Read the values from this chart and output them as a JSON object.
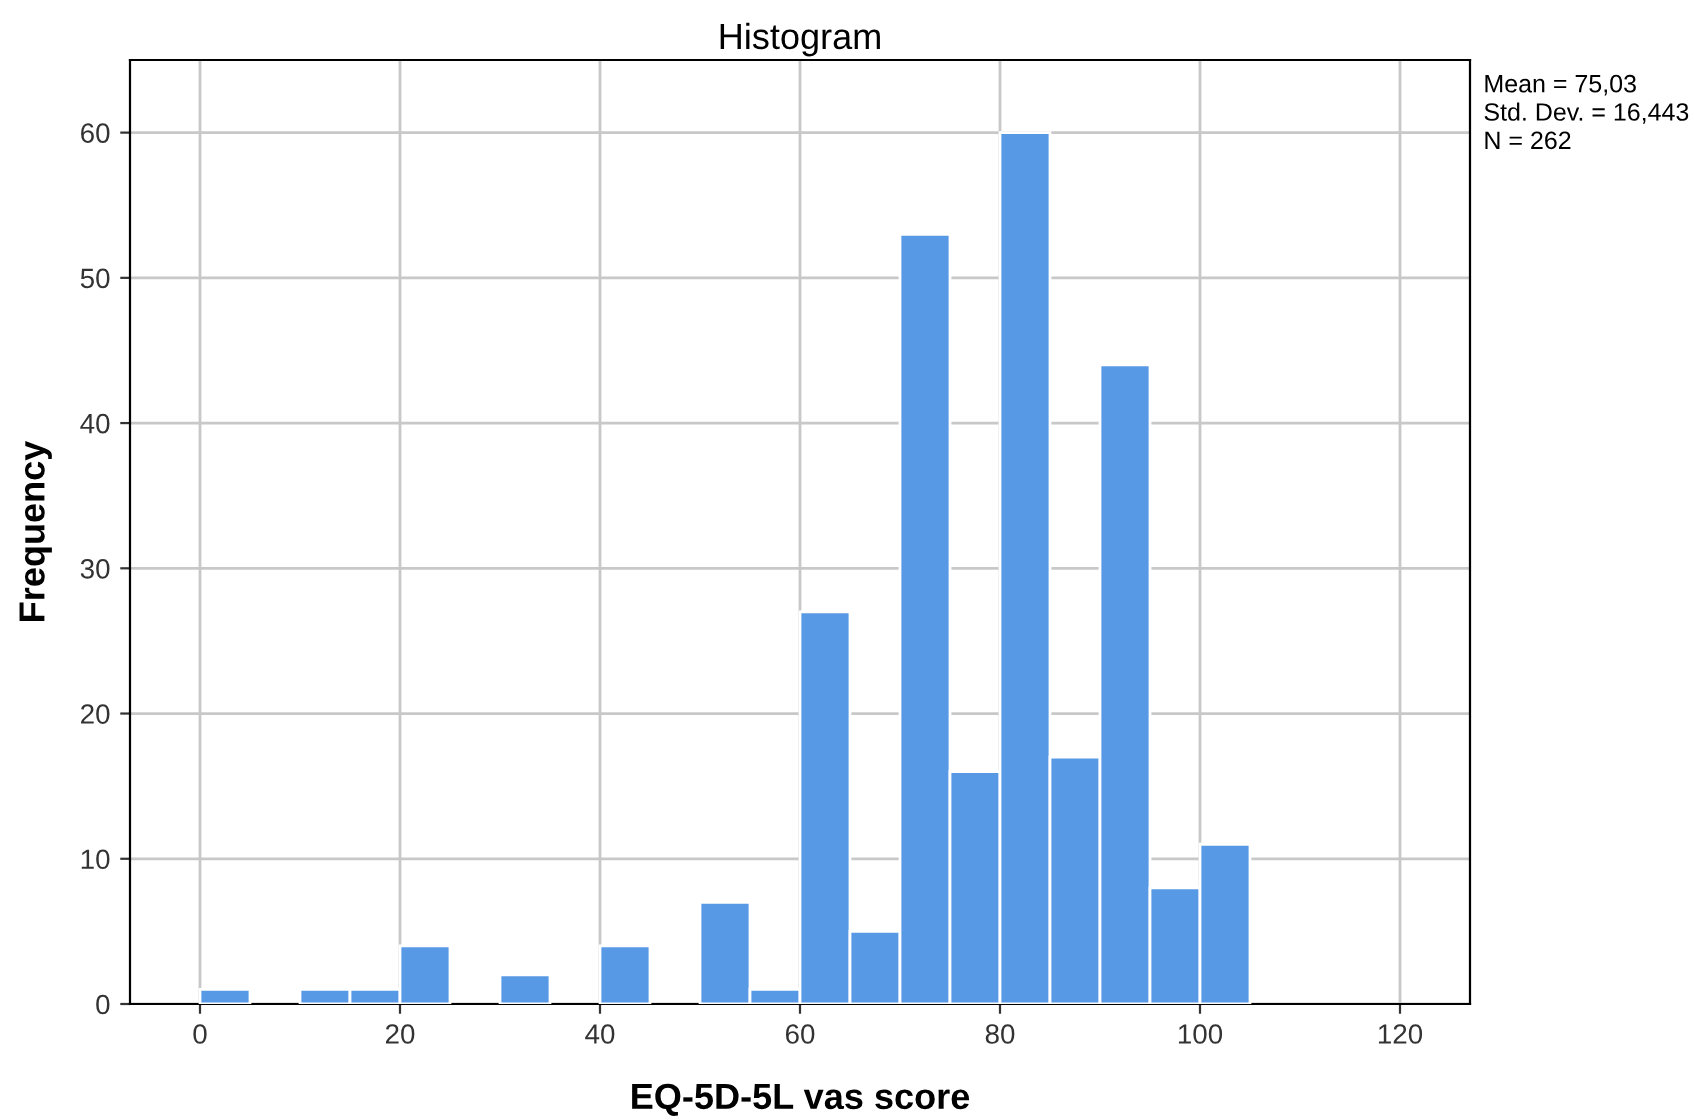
{
  "chart_data": {
    "type": "histogram",
    "title": "Histogram",
    "xlabel": "EQ-5D-5L vas score",
    "ylabel": "Frequency",
    "bins": [
      0,
      5,
      10,
      15,
      20,
      25,
      30,
      35,
      40,
      45,
      50,
      55,
      60,
      65,
      70,
      75,
      80,
      85,
      90,
      95,
      100,
      105
    ],
    "values": [
      1,
      0,
      1,
      1,
      4,
      0,
      2,
      0,
      4,
      0,
      7,
      1,
      27,
      5,
      53,
      16,
      60,
      17,
      44,
      8,
      11
    ],
    "color": "#5899e6",
    "xlim": [
      -7,
      127
    ],
    "xticks": [
      0,
      20,
      40,
      60,
      80,
      100,
      120
    ],
    "ylim": [
      0,
      65
    ],
    "yticks": [
      0,
      10,
      20,
      30,
      40,
      50,
      60
    ],
    "grid": true,
    "annotations": [
      "Mean = 75,03",
      "Std. Dev. = 16,443",
      "N = 262"
    ]
  }
}
